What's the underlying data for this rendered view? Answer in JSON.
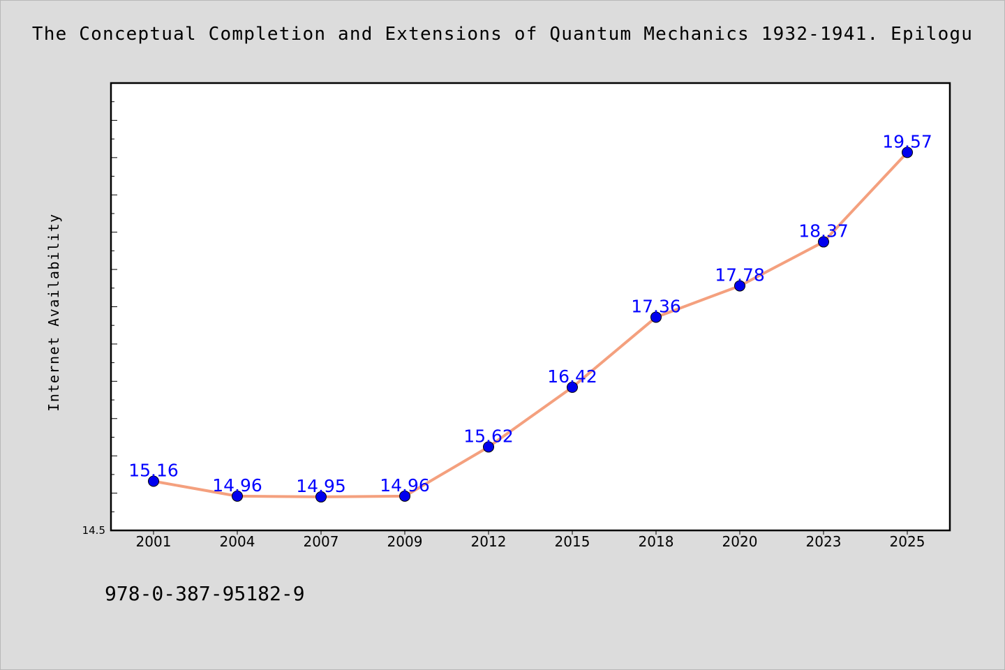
{
  "title": "The Conceptual Completion and Extensions of Quantum Mechanics 1932-1941. Epilogu",
  "footnote": "978-0-387-95182-9",
  "colors": {
    "background": "#dcdcdc",
    "plot_background": "#ffffff",
    "line": "#f4a07e",
    "marker": "#0000ee",
    "data_label": "#0000ff"
  },
  "chart_data": {
    "type": "line",
    "title": "The Conceptual Completion and Extensions of Quantum Mechanics 1932-1941. Epilogu",
    "xlabel": "",
    "ylabel": "Internet Availability",
    "categories": [
      "2001",
      "2004",
      "2007",
      "2009",
      "2012",
      "2015",
      "2018",
      "2020",
      "2023",
      "2025"
    ],
    "series": [
      {
        "values": [
          15.16,
          14.96,
          14.95,
          14.96,
          15.62,
          16.42,
          17.36,
          17.78,
          18.37,
          19.57
        ],
        "labels": [
          "15.16",
          "14.96",
          "14.95",
          "14.96",
          "15.62",
          "16.42",
          "17.36",
          "17.78",
          "18.37",
          "19.57"
        ]
      }
    ],
    "ylim": [
      14.5,
      20.5
    ],
    "yticks_labeled": [
      "14.5"
    ],
    "grid": false,
    "legend": "none"
  }
}
